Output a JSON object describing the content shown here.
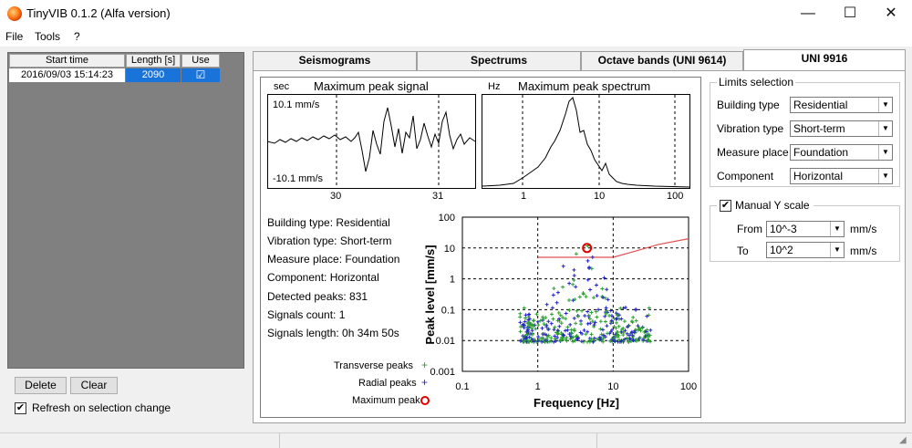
{
  "window": {
    "title": "TinyVIB 0.1.2 (Alfa version)",
    "minimize_glyph": "—",
    "maximize_glyph": "☐",
    "close_glyph": "✕"
  },
  "menu": [
    "File",
    "Tools",
    "?"
  ],
  "table": {
    "headers": [
      "Start time",
      "Length [s]",
      "Use"
    ],
    "rows": [
      {
        "start_time": "2016/09/03 15:14:23",
        "length": "2090",
        "use": "☑"
      }
    ]
  },
  "buttons": {
    "delete": "Delete",
    "clear": "Clear"
  },
  "refresh": {
    "label": "Refresh on selection change",
    "checked": "✔"
  },
  "tabs": [
    "Seismograms",
    "Spectrums",
    "Octave bands (UNI 9614)",
    "UNI 9916"
  ],
  "signal_plot": {
    "unit": "sec",
    "title": "Maximum peak signal",
    "top_label": "10.1 mm/s",
    "bottom_label": "-10.1 mm/s",
    "ticks": [
      "30",
      "31"
    ]
  },
  "spectrum_plot": {
    "unit": "Hz",
    "title": "Maximum peak spectrum",
    "ticks": [
      "1",
      "10",
      "100"
    ]
  },
  "info": [
    "Building type: Residential",
    "Vibration type: Short-term",
    "Measure place: Foundation",
    "Component: Horizontal",
    "Detected peaks: 831",
    "Signals count: 1",
    "Signals length: 0h 34m 50s"
  ],
  "legend": {
    "transverse": "Transverse peaks",
    "radial": "Radial peaks",
    "maximum": "Maximum peak"
  },
  "chart_data": {
    "type": "scatter",
    "xlabel": "Frequency [Hz]",
    "ylabel": "Peak level [mm/s]",
    "x_scale": "log",
    "y_scale": "log",
    "xlim": [
      0.1,
      100
    ],
    "ylim": [
      0.001,
      100
    ],
    "x_ticks": [
      "0.1",
      "1",
      "10",
      "100"
    ],
    "y_ticks": [
      "100",
      "10",
      "1",
      "0.1",
      "0.01",
      "0.001"
    ],
    "grid": true,
    "series": [
      {
        "name": "Transverse peaks",
        "color": "#2ca02c",
        "marker": "+"
      },
      {
        "name": "Radial peaks",
        "color": "#2222cc",
        "marker": "+"
      },
      {
        "name": "Maximum peak",
        "color": "#e00000",
        "marker": "o",
        "x": [
          4.5
        ],
        "y": [
          10
        ]
      }
    ],
    "limit_line": {
      "color": "#e05050",
      "x": [
        1,
        10,
        20,
        40,
        100
      ],
      "y": [
        5,
        5,
        8,
        13,
        20
      ]
    }
  },
  "limits": {
    "title": "Limits selection",
    "fields": [
      {
        "label": "Building type",
        "value": "Residential"
      },
      {
        "label": "Vibration type",
        "value": "Short-term"
      },
      {
        "label": "Measure place",
        "value": "Foundation"
      },
      {
        "label": "Component",
        "value": "Horizontal"
      }
    ]
  },
  "manual_scale": {
    "label": "Manual Y scale",
    "checked": "✔",
    "from_label": "From",
    "from_value": "10^-3",
    "to_label": "To",
    "to_value": "10^2",
    "unit": "mm/s"
  }
}
